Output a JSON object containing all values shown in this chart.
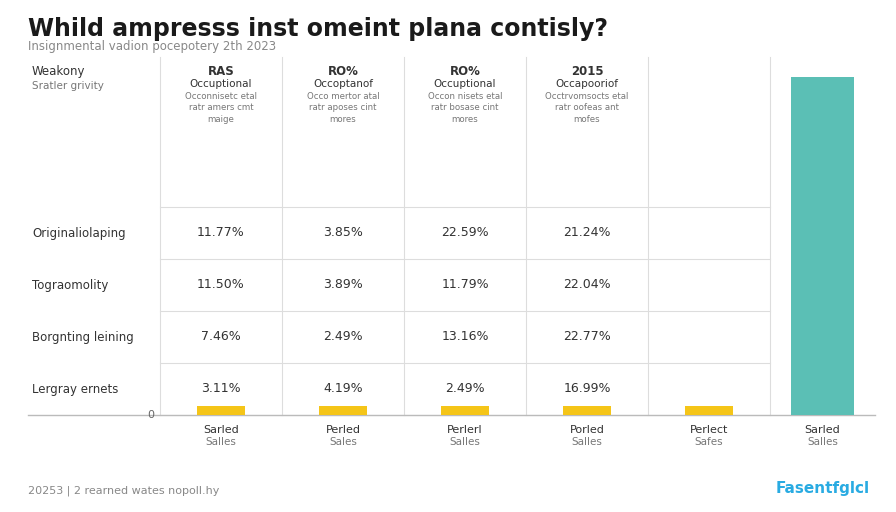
{
  "title": "Whild ampresss inst omeint plana contisly?",
  "subtitle": "Insignmental vadion pocepotery 2th 2023",
  "footer_left": "20253 | 2 rearned wates nopoll.hy",
  "footer_right": "Fasentfglcl",
  "row_header": "Weakony",
  "row_subheader": "Sratler grivity",
  "row_labels": [
    "Originaliolaping",
    "Tograomolity",
    "Borgnting leining",
    "Lergray ernets"
  ],
  "col_headers_line1": [
    "RAS",
    "RO%",
    "RO%",
    "2015"
  ],
  "col_headers_line2": [
    "Occuptional",
    "Occoptanof",
    "Occuptional",
    "Occapooriof"
  ],
  "col_headers_sub": [
    "Occonnisetc etal\nratr amers cmt\nmaige",
    "Occo mertor atal\nratr aposes cint\nmores",
    "Occon nisets etal\nratr bosase cint\nmores",
    "Occtrvomsocts etal\nratr oofeas ant\nmofes"
  ],
  "col_labels_line1": [
    "Sarled",
    "Perled",
    "Perlerl",
    "Porled",
    "Perlect",
    "Sarled"
  ],
  "col_labels_line2": [
    "Salles",
    "Sales",
    "Salles",
    "Salles",
    "Safes",
    "Salles"
  ],
  "data": [
    [
      11.77,
      3.85,
      22.59,
      21.24
    ],
    [
      11.5,
      3.89,
      11.79,
      22.04
    ],
    [
      7.46,
      2.49,
      13.16,
      22.77
    ],
    [
      3.11,
      4.19,
      2.49,
      16.99
    ]
  ],
  "bar_color_small": "#F5C518",
  "bar_color_big": "#5BBFB5",
  "background_color": "#FFFFFF",
  "grid_color": "#DDDDDD",
  "title_color": "#1a1a1a",
  "subtitle_color": "#888888",
  "footer_right_color": "#29ABE2",
  "table_text_color": "#333333",
  "header_text_color": "#777777",
  "axis_line_color": "#BBBBBB"
}
